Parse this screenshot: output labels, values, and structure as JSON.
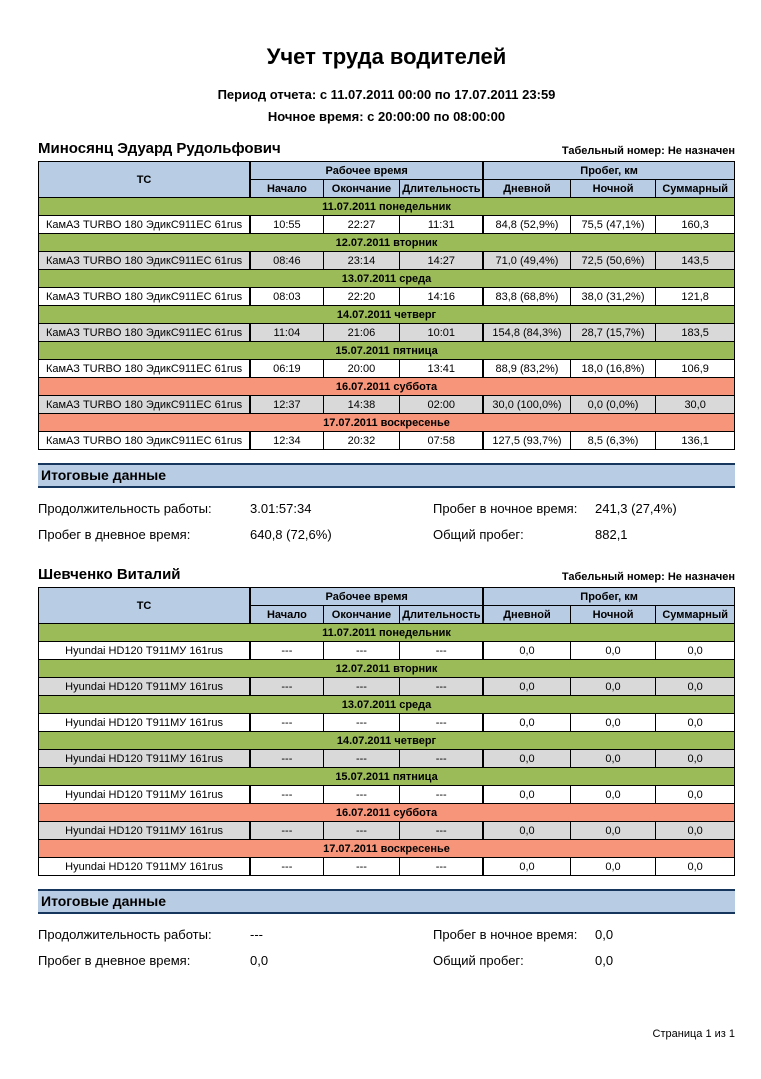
{
  "page": {
    "title": "Учет труда водителей",
    "subtitle1": "Период отчета: с 11.07.2011 00:00 по 17.07.2011 23:59",
    "subtitle2": "Ночное время: с 20:00:00 по 08:00:00",
    "footer": "Страница 1 из 1"
  },
  "colors": {
    "header_blue": "#b8cce4",
    "weekday_green": "#9bbb59",
    "weekend_salmon": "#f7957a",
    "row_gray": "#d9d9d9",
    "totals_border_navy": "#17365d"
  },
  "table_header": {
    "vehicle": "ТС",
    "work_time_group": "Рабочее время",
    "mileage_group": "Пробег, км",
    "columns": [
      "Начало",
      "Окончание",
      "Длительность",
      "Дневной",
      "Ночной",
      "Суммарный"
    ]
  },
  "totals_labels": {
    "title": "Итоговые данные",
    "duration": "Продолжительность работы:",
    "day_mileage": "Пробег в дневное время:",
    "night_mileage": "Пробег в ночное время:",
    "total_mileage": "Общий пробег:"
  },
  "sections": [
    {
      "driver": "Миносянц Эдуард Рудольфович",
      "tab_number": "Табельный номер: Не назначен",
      "days": [
        {
          "date": "11.07.2011 понедельник",
          "weekend": false,
          "vehicle": "КамАЗ TURBO 180 ЭдикС911ЕС 61rus",
          "start": "10:55",
          "end": "22:27",
          "duration": "11:31",
          "day_km": "84,8 (52,9%)",
          "night_km": "75,5 (47,1%)",
          "total_km": "160,3"
        },
        {
          "date": "12.07.2011 вторник",
          "weekend": false,
          "vehicle": "КамАЗ TURBO 180 ЭдикС911ЕС 61rus",
          "start": "08:46",
          "end": "23:14",
          "duration": "14:27",
          "day_km": "71,0 (49,4%)",
          "night_km": "72,5 (50,6%)",
          "total_km": "143,5"
        },
        {
          "date": "13.07.2011 среда",
          "weekend": false,
          "vehicle": "КамАЗ TURBO 180 ЭдикС911ЕС 61rus",
          "start": "08:03",
          "end": "22:20",
          "duration": "14:16",
          "day_km": "83,8 (68,8%)",
          "night_km": "38,0 (31,2%)",
          "total_km": "121,8"
        },
        {
          "date": "14.07.2011 четверг",
          "weekend": false,
          "vehicle": "КамАЗ TURBO 180 ЭдикС911ЕС 61rus",
          "start": "11:04",
          "end": "21:06",
          "duration": "10:01",
          "day_km": "154,8 (84,3%)",
          "night_km": "28,7 (15,7%)",
          "total_km": "183,5"
        },
        {
          "date": "15.07.2011 пятница",
          "weekend": false,
          "vehicle": "КамАЗ TURBO 180 ЭдикС911ЕС 61rus",
          "start": "06:19",
          "end": "20:00",
          "duration": "13:41",
          "day_km": "88,9 (83,2%)",
          "night_km": "18,0 (16,8%)",
          "total_km": "106,9"
        },
        {
          "date": "16.07.2011 суббота",
          "weekend": true,
          "vehicle": "КамАЗ TURBO 180 ЭдикС911ЕС 61rus",
          "start": "12:37",
          "end": "14:38",
          "duration": "02:00",
          "day_km": "30,0 (100,0%)",
          "night_km": "0,0 (0,0%)",
          "total_km": "30,0"
        },
        {
          "date": "17.07.2011 воскресенье",
          "weekend": true,
          "vehicle": "КамАЗ TURBO 180 ЭдикС911ЕС 61rus",
          "start": "12:34",
          "end": "20:32",
          "duration": "07:58",
          "day_km": "127,5 (93,7%)",
          "night_km": "8,5 (6,3%)",
          "total_km": "136,1"
        }
      ],
      "totals": {
        "duration": "3.01:57:34",
        "day_mileage": "640,8 (72,6%)",
        "night_mileage": "241,3 (27,4%)",
        "total_mileage": "882,1"
      }
    },
    {
      "driver": "Шевченко Виталий",
      "tab_number": "Табельный номер: Не назначен",
      "days": [
        {
          "date": "11.07.2011 понедельник",
          "weekend": false,
          "vehicle": "Hyundai HD120 Т911МУ 161rus",
          "start": "---",
          "end": "---",
          "duration": "---",
          "day_km": "0,0",
          "night_km": "0,0",
          "total_km": "0,0"
        },
        {
          "date": "12.07.2011 вторник",
          "weekend": false,
          "vehicle": "Hyundai HD120 Т911МУ 161rus",
          "start": "---",
          "end": "---",
          "duration": "---",
          "day_km": "0,0",
          "night_km": "0,0",
          "total_km": "0,0"
        },
        {
          "date": "13.07.2011 среда",
          "weekend": false,
          "vehicle": "Hyundai HD120 Т911МУ 161rus",
          "start": "---",
          "end": "---",
          "duration": "---",
          "day_km": "0,0",
          "night_km": "0,0",
          "total_km": "0,0"
        },
        {
          "date": "14.07.2011 четверг",
          "weekend": false,
          "vehicle": "Hyundai HD120 Т911МУ 161rus",
          "start": "---",
          "end": "---",
          "duration": "---",
          "day_km": "0,0",
          "night_km": "0,0",
          "total_km": "0,0"
        },
        {
          "date": "15.07.2011 пятница",
          "weekend": false,
          "vehicle": "Hyundai HD120 Т911МУ 161rus",
          "start": "---",
          "end": "---",
          "duration": "---",
          "day_km": "0,0",
          "night_km": "0,0",
          "total_km": "0,0"
        },
        {
          "date": "16.07.2011 суббота",
          "weekend": true,
          "vehicle": "Hyundai HD120 Т911МУ 161rus",
          "start": "---",
          "end": "---",
          "duration": "---",
          "day_km": "0,0",
          "night_km": "0,0",
          "total_km": "0,0"
        },
        {
          "date": "17.07.2011 воскресенье",
          "weekend": true,
          "vehicle": "Hyundai HD120 Т911МУ 161rus",
          "start": "---",
          "end": "---",
          "duration": "---",
          "day_km": "0,0",
          "night_km": "0,0",
          "total_km": "0,0"
        }
      ],
      "totals": {
        "duration": "---",
        "day_mileage": "0,0",
        "night_mileage": "0,0",
        "total_mileage": "0,0"
      }
    }
  ]
}
